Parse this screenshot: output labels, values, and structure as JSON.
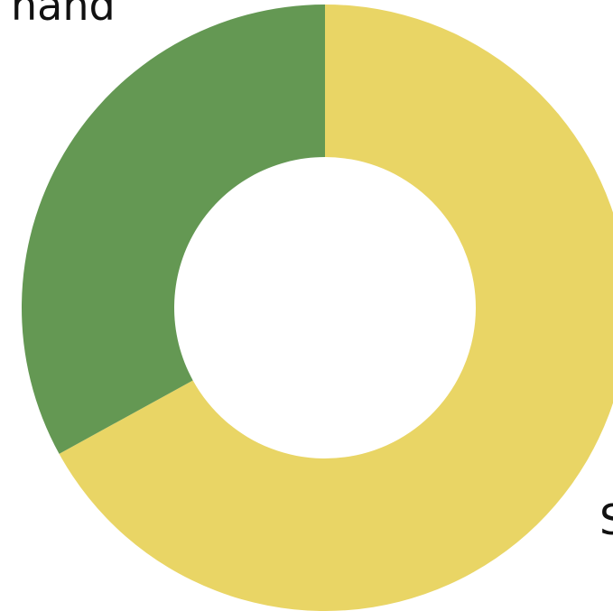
{
  "chart_data": {
    "type": "pie",
    "categories": [
      "S",
      "hand"
    ],
    "values": [
      67,
      33
    ],
    "colors": [
      "#e9d565",
      "#649853"
    ]
  }
}
